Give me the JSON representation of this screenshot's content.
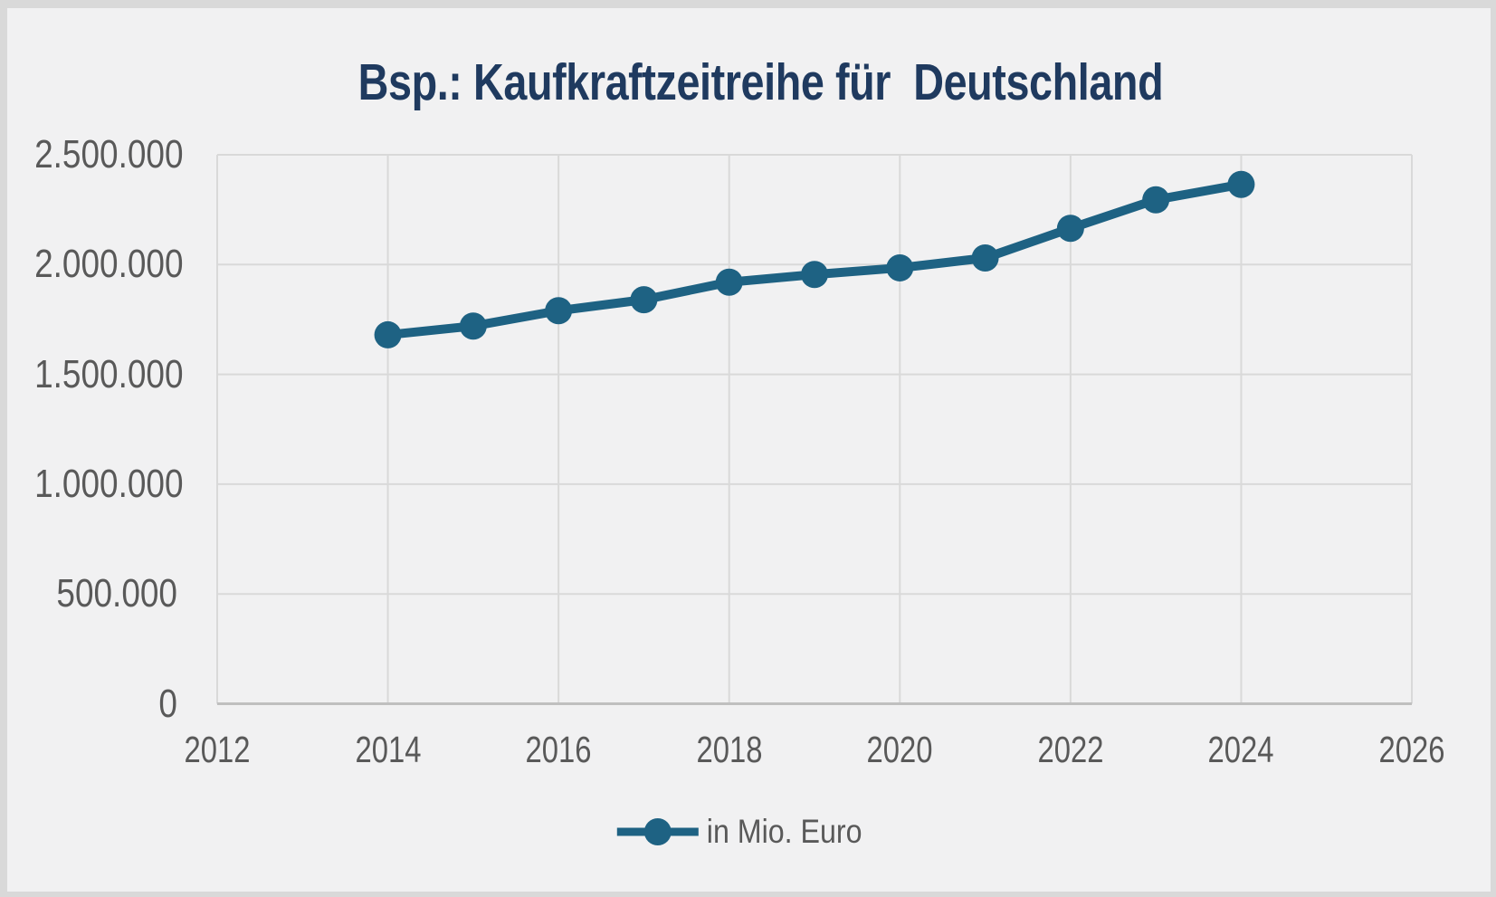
{
  "window": {
    "frame_color": "#d9d9d9",
    "card_background": "#f1f1f2"
  },
  "title": {
    "text": "Bsp.: Kaufkraftzeitreihe für  Deutschland",
    "color": "#1f3a5f"
  },
  "legend": {
    "label": "in Mio. Euro",
    "marker": "circle-on-line",
    "position": "bottom-center"
  },
  "axes": {
    "tick_color": "#595959",
    "gridline_color": "#d9d9d9",
    "axis_line_color": "#bfbfbf",
    "x_ticks": [
      {
        "label": "2012",
        "value": 2012
      },
      {
        "label": "2014",
        "value": 2014
      },
      {
        "label": "2016",
        "value": 2016
      },
      {
        "label": "2018",
        "value": 2018
      },
      {
        "label": "2020",
        "value": 2020
      },
      {
        "label": "2022",
        "value": 2022
      },
      {
        "label": "2024",
        "value": 2024
      },
      {
        "label": "2026",
        "value": 2026
      }
    ],
    "y_ticks": [
      {
        "label": "2.500.000",
        "value": 2500000
      },
      {
        "label": "2.000.000",
        "value": 2000000
      },
      {
        "label": "1.500.000",
        "value": 1500000
      },
      {
        "label": "1.000.000",
        "value": 1000000
      },
      {
        "label": "500.000",
        "value": 500000
      },
      {
        "label": "0",
        "value": 0
      }
    ]
  },
  "series_color": "#1e6283",
  "chart_data": {
    "type": "line",
    "title": "Bsp.: Kaufkraftzeitreihe für Deutschland",
    "xlabel": "",
    "ylabel": "",
    "x": [
      2014,
      2015,
      2016,
      2017,
      2018,
      2019,
      2020,
      2021,
      2022,
      2023,
      2024
    ],
    "series": [
      {
        "name": "in Mio. Euro",
        "values": [
          1680000,
          1720000,
          1790000,
          1840000,
          1920000,
          1955000,
          1985000,
          2030000,
          2165000,
          2295000,
          2365000
        ]
      }
    ],
    "xlim": [
      2012,
      2026
    ],
    "ylim": [
      0,
      2500000
    ],
    "x_tick_step": 2,
    "y_tick_step": 500000,
    "grid": true,
    "legend_position": "bottom",
    "marker": "circle",
    "number_format": "de-DE (dots as thousands separators)"
  }
}
